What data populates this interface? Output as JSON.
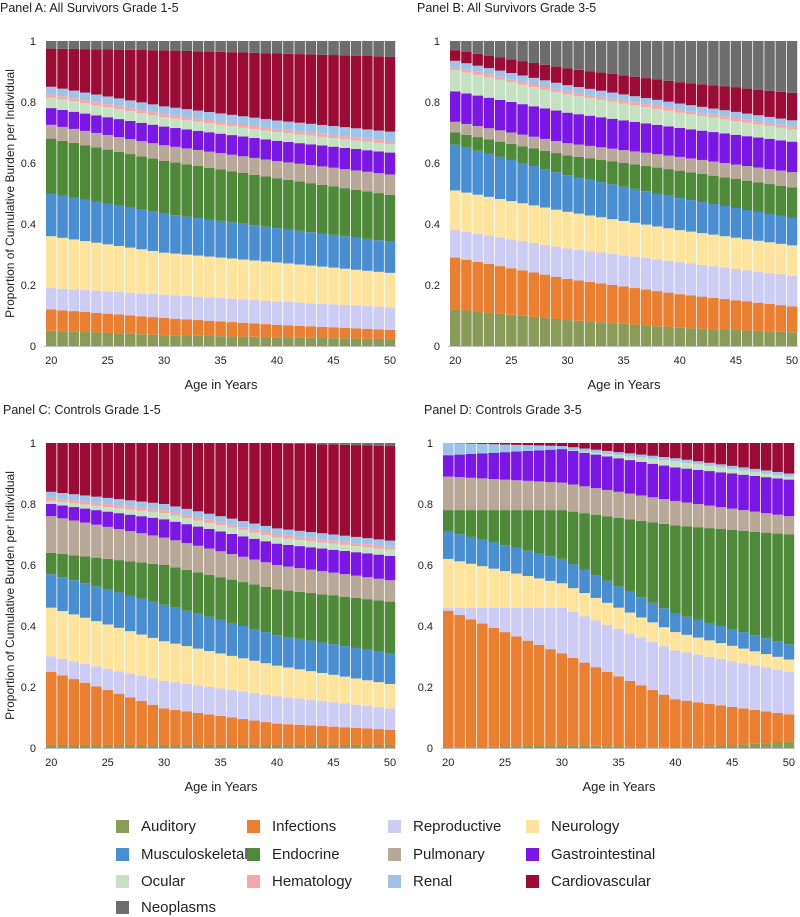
{
  "colors": {
    "Auditory": "#8a9a58",
    "Infections": "#ea7e31",
    "Reproductive": "#cdccf4",
    "Neurology": "#fde39c",
    "Musculoskeletal": "#4a8ed2",
    "Endocrine": "#4e8a3a",
    "Pulmonary": "#b8a898",
    "Gastrointestinal": "#7a16e6",
    "Ocular": "#c4e2c2",
    "Hematology": "#f4a8a8",
    "Renal": "#9dc4e8",
    "Cardiovascular": "#9a0c36",
    "Neoplasms": "#6d6d6d"
  },
  "legend": [
    "Auditory",
    "Infections",
    "Reproductive",
    "Neurology",
    "Musculoskeletal",
    "Endocrine",
    "Pulmonary",
    "Gastrointestinal",
    "Ocular",
    "Hematology",
    "Renal",
    "Cardiovascular",
    "Neoplasms"
  ],
  "chart_data": [
    {
      "type": "bar",
      "stacked": true,
      "title": "Panel A: All Survivors Grade 1-5",
      "xlabel": "Age in Years",
      "ylabel": "Proportion of Cumulative Burden per Individual",
      "x_range": [
        20,
        50
      ],
      "xticks": [
        "20",
        "25",
        "30",
        "35",
        "40",
        "45",
        "50"
      ],
      "yticks": [
        "0",
        "0.2",
        "0.4",
        "0.6",
        "0.8",
        "1"
      ],
      "ylim": [
        0,
        1
      ],
      "boundaries_at_ages": [
        20,
        30,
        40,
        50
      ],
      "series": [
        {
          "name": "Auditory",
          "values": [
            0.05,
            0.035,
            0.028,
            0.022
          ]
        },
        {
          "name": "Infections",
          "values": [
            0.07,
            0.055,
            0.04,
            0.03
          ]
        },
        {
          "name": "Reproductive",
          "values": [
            0.07,
            0.075,
            0.075,
            0.072
          ]
        },
        {
          "name": "Neurology",
          "values": [
            0.17,
            0.135,
            0.125,
            0.11
          ]
        },
        {
          "name": "Musculoskeletal",
          "values": [
            0.14,
            0.125,
            0.11,
            0.1
          ]
        },
        {
          "name": "Endocrine",
          "values": [
            0.18,
            0.17,
            0.16,
            0.15
          ]
        },
        {
          "name": "Pulmonary",
          "values": [
            0.045,
            0.05,
            0.055,
            0.065
          ]
        },
        {
          "name": "Gastrointestinal",
          "values": [
            0.055,
            0.06,
            0.065,
            0.07
          ]
        },
        {
          "name": "Ocular",
          "values": [
            0.035,
            0.03,
            0.028,
            0.027
          ]
        },
        {
          "name": "Hematology",
          "values": [
            0.01,
            0.01,
            0.01,
            0.01
          ]
        },
        {
          "name": "Renal",
          "values": [
            0.025,
            0.025,
            0.027,
            0.03
          ]
        },
        {
          "name": "Cardiovascular",
          "values": [
            0.125,
            0.18,
            0.215,
            0.24
          ]
        },
        {
          "name": "Neoplasms",
          "values": [
            0.025,
            0.03,
            0.04,
            0.05
          ]
        }
      ]
    },
    {
      "type": "bar",
      "stacked": true,
      "title": "Panel B: All Survivors Grade 3-5",
      "xlabel": "Age in Years",
      "ylabel": "",
      "x_range": [
        20,
        50
      ],
      "xticks": [
        "20",
        "25",
        "30",
        "35",
        "40",
        "45",
        "50"
      ],
      "yticks": [
        "0",
        "0.2",
        "0.4",
        "0.6",
        "0.8",
        "1"
      ],
      "ylim": [
        0,
        1
      ],
      "boundaries_at_ages": [
        20,
        30,
        40,
        50
      ],
      "series": [
        {
          "name": "Auditory",
          "values": [
            0.12,
            0.085,
            0.06,
            0.045
          ]
        },
        {
          "name": "Infections",
          "values": [
            0.17,
            0.135,
            0.11,
            0.085
          ]
        },
        {
          "name": "Reproductive",
          "values": [
            0.09,
            0.1,
            0.105,
            0.1
          ]
        },
        {
          "name": "Neurology",
          "values": [
            0.13,
            0.12,
            0.105,
            0.1
          ]
        },
        {
          "name": "Musculoskeletal",
          "values": [
            0.15,
            0.12,
            0.105,
            0.09
          ]
        },
        {
          "name": "Endocrine",
          "values": [
            0.04,
            0.065,
            0.09,
            0.1
          ]
        },
        {
          "name": "Pulmonary",
          "values": [
            0.035,
            0.04,
            0.045,
            0.05
          ]
        },
        {
          "name": "Gastrointestinal",
          "values": [
            0.1,
            0.1,
            0.095,
            0.1
          ]
        },
        {
          "name": "Ocular",
          "values": [
            0.07,
            0.06,
            0.05,
            0.04
          ]
        },
        {
          "name": "Hematology",
          "values": [
            0.01,
            0.01,
            0.01,
            0.01
          ]
        },
        {
          "name": "Renal",
          "values": [
            0.02,
            0.02,
            0.02,
            0.02
          ]
        },
        {
          "name": "Cardiovascular",
          "values": [
            0.035,
            0.055,
            0.07,
            0.09
          ]
        },
        {
          "name": "Neoplasms",
          "values": [
            0.03,
            0.09,
            0.135,
            0.17
          ]
        }
      ]
    },
    {
      "type": "bar",
      "stacked": true,
      "title": "Panel C: Controls Grade 1-5",
      "xlabel": "Age in Years",
      "ylabel": "Proportion of Cumulative Burden per Individual",
      "x_range": [
        20,
        50
      ],
      "xticks": [
        "20",
        "25",
        "30",
        "35",
        "40",
        "45",
        "50"
      ],
      "yticks": [
        "0",
        "0.2",
        "0.4",
        "0.6",
        "0.8",
        "1"
      ],
      "ylim": [
        0,
        1
      ],
      "boundaries_at_ages": [
        20,
        30,
        40,
        50
      ],
      "series": [
        {
          "name": "Auditory",
          "values": [
            0.01,
            0.01,
            0.01,
            0.01
          ]
        },
        {
          "name": "Infections",
          "values": [
            0.24,
            0.12,
            0.07,
            0.05
          ]
        },
        {
          "name": "Reproductive",
          "values": [
            0.05,
            0.09,
            0.09,
            0.07
          ]
        },
        {
          "name": "Neurology",
          "values": [
            0.16,
            0.13,
            0.1,
            0.08
          ]
        },
        {
          "name": "Musculoskeletal",
          "values": [
            0.11,
            0.12,
            0.1,
            0.1
          ]
        },
        {
          "name": "Endocrine",
          "values": [
            0.07,
            0.13,
            0.15,
            0.17
          ]
        },
        {
          "name": "Pulmonary",
          "values": [
            0.12,
            0.09,
            0.08,
            0.07
          ]
        },
        {
          "name": "Gastrointestinal",
          "values": [
            0.04,
            0.06,
            0.07,
            0.08
          ]
        },
        {
          "name": "Ocular",
          "values": [
            0.01,
            0.02,
            0.02,
            0.02
          ]
        },
        {
          "name": "Hematology",
          "values": [
            0.01,
            0.01,
            0.01,
            0.01
          ]
        },
        {
          "name": "Renal",
          "values": [
            0.02,
            0.02,
            0.02,
            0.02
          ]
        },
        {
          "name": "Cardiovascular",
          "values": [
            0.16,
            0.2,
            0.28,
            0.31
          ]
        },
        {
          "name": "Neoplasms",
          "values": [
            0.0,
            0.0,
            0.0,
            0.01
          ]
        }
      ]
    },
    {
      "type": "bar",
      "stacked": true,
      "title": "Panel D: Controls Grade 3-5",
      "xlabel": "Age in Years",
      "ylabel": "",
      "x_range": [
        20,
        50
      ],
      "xticks": [
        "20",
        "25",
        "30",
        "35",
        "40",
        "45",
        "50"
      ],
      "yticks": [
        "0",
        "0.2",
        "0.4",
        "0.6",
        "0.8",
        "1"
      ],
      "ylim": [
        0,
        1
      ],
      "boundaries_at_ages": [
        20,
        30,
        40,
        50
      ],
      "series": [
        {
          "name": "Auditory",
          "values": [
            0.0,
            0.01,
            0.0,
            0.02
          ]
        },
        {
          "name": "Infections",
          "values": [
            0.45,
            0.3,
            0.16,
            0.09
          ]
        },
        {
          "name": "Reproductive",
          "values": [
            0.01,
            0.15,
            0.16,
            0.14
          ]
        },
        {
          "name": "Neurology",
          "values": [
            0.16,
            0.08,
            0.06,
            0.04
          ]
        },
        {
          "name": "Musculoskeletal",
          "values": [
            0.09,
            0.08,
            0.06,
            0.05
          ]
        },
        {
          "name": "Endocrine",
          "values": [
            0.07,
            0.16,
            0.29,
            0.36
          ]
        },
        {
          "name": "Pulmonary",
          "values": [
            0.11,
            0.09,
            0.08,
            0.06
          ]
        },
        {
          "name": "Gastrointestinal",
          "values": [
            0.07,
            0.11,
            0.11,
            0.12
          ]
        },
        {
          "name": "Ocular",
          "values": [
            0.0,
            0.0,
            0.02,
            0.01
          ]
        },
        {
          "name": "Hematology",
          "values": [
            0.0,
            0.0,
            0.0,
            0.0
          ]
        },
        {
          "name": "Renal",
          "values": [
            0.04,
            0.01,
            0.01,
            0.01
          ]
        },
        {
          "name": "Cardiovascular",
          "values": [
            0.0,
            0.01,
            0.05,
            0.1
          ]
        },
        {
          "name": "Neoplasms",
          "values": [
            0.0,
            0.0,
            0.0,
            0.0
          ]
        }
      ]
    }
  ]
}
